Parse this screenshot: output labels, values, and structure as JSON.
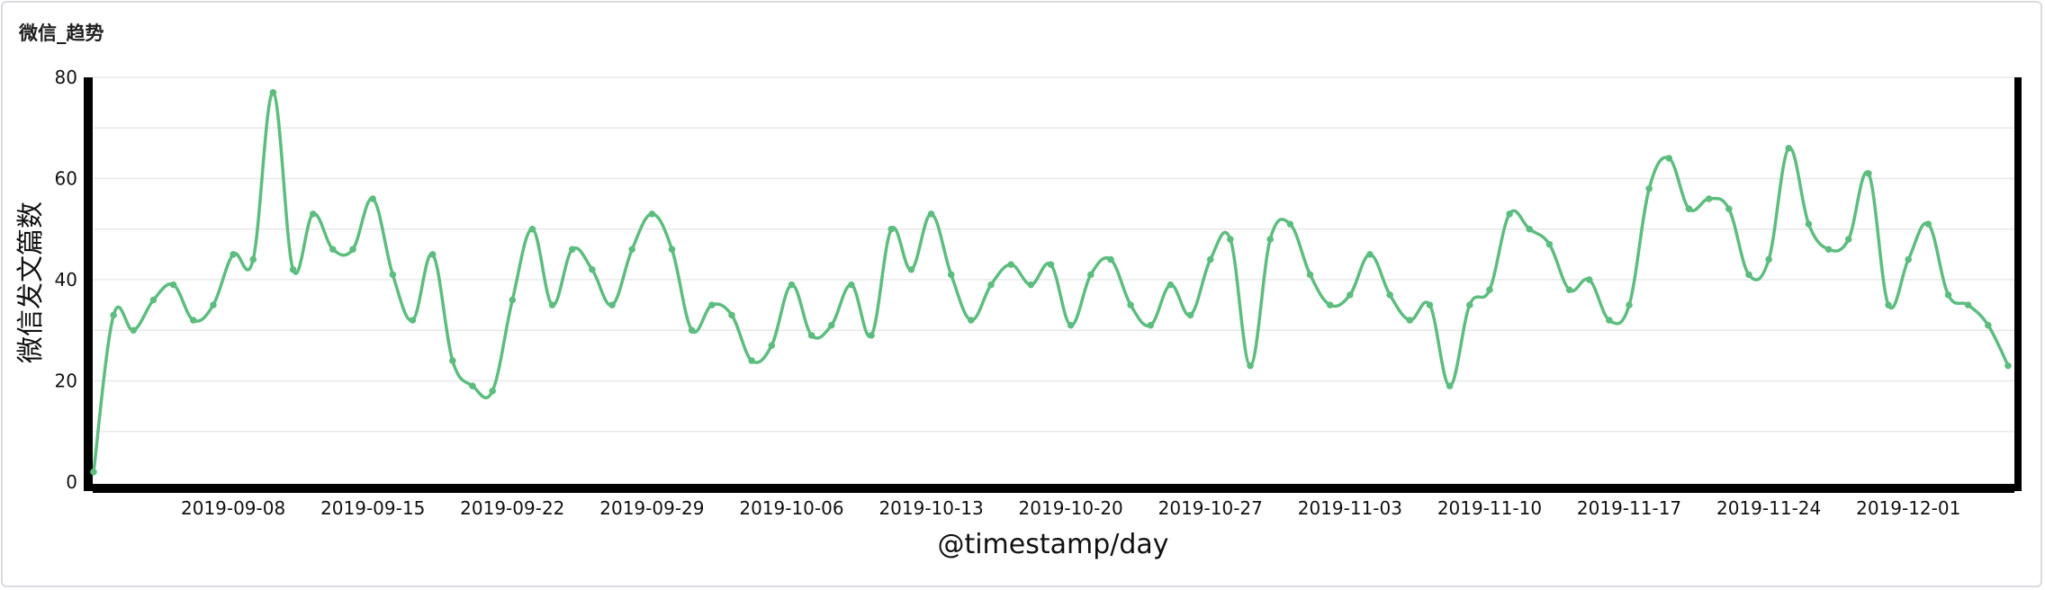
{
  "panel": {
    "title": "微信_趋势"
  },
  "chart_data": {
    "type": "line",
    "title": "微信_趋势",
    "xlabel": "@timestamp/day",
    "ylabel": "微信发文篇数",
    "ylim": [
      0,
      80
    ],
    "yticks": [
      0,
      20,
      40,
      60,
      80
    ],
    "grid": true,
    "line_color": "#5cbd7e",
    "x_start": "2019-09-01",
    "x_tick_labels": [
      "2019-09-08",
      "2019-09-15",
      "2019-09-22",
      "2019-09-29",
      "2019-10-06",
      "2019-10-13",
      "2019-10-20",
      "2019-10-27",
      "2019-11-03",
      "2019-11-10",
      "2019-11-17",
      "2019-11-24",
      "2019-12-01"
    ],
    "series": [
      {
        "values": [
          2,
          33,
          30,
          36,
          39,
          32,
          35,
          45,
          44,
          77,
          42,
          53,
          46,
          46,
          56,
          41,
          32,
          45,
          24,
          19,
          18,
          36,
          50,
          35,
          46,
          42,
          35,
          46,
          53,
          46,
          30,
          35,
          33,
          24,
          27,
          39,
          29,
          31,
          39,
          29,
          50,
          42,
          53,
          41,
          32,
          39,
          43,
          39,
          43,
          31,
          41,
          44,
          35,
          31,
          39,
          33,
          44,
          48,
          23,
          48,
          51,
          41,
          35,
          37,
          45,
          37,
          32,
          35,
          19,
          35,
          38,
          53,
          50,
          47,
          38,
          40,
          32,
          35,
          58,
          64,
          54,
          56,
          54,
          41,
          44,
          66,
          51,
          46,
          48,
          61,
          35,
          44,
          51,
          37,
          35,
          31,
          23
        ]
      }
    ]
  }
}
